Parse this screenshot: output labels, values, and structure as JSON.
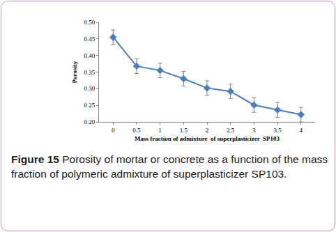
{
  "chart_data": {
    "type": "line",
    "x_label": "Mass fraction of admixture  of superplasticizer  SP103",
    "y_label": "Porosity",
    "x": [
      0,
      0.5,
      1,
      1.5,
      2,
      2.5,
      3,
      3.5,
      4
    ],
    "series": [
      {
        "name": "Porosity",
        "color": "#4a7ebb",
        "marker": "diamond",
        "values": [
          0.455,
          0.368,
          0.355,
          0.33,
          0.302,
          0.292,
          0.251,
          0.236,
          0.222
        ],
        "errors": [
          0.022,
          0.022,
          0.022,
          0.022,
          0.022,
          0.022,
          0.022,
          0.022,
          0.022
        ]
      }
    ],
    "xlim": [
      -0.3,
      4.3
    ],
    "xticks": [
      0,
      0.5,
      1,
      1.5,
      2,
      2.5,
      3,
      3.5,
      4
    ],
    "ylim": [
      0.2,
      0.5
    ],
    "yticks": [
      {
        "value": 0.2,
        "label": "0.20"
      },
      0.25,
      {
        "value": 0.3,
        "label": "0.30"
      },
      0.35,
      {
        "value": 0.4,
        "label": "0.40"
      },
      0.45,
      {
        "value": 0.5,
        "label": "0.50"
      }
    ],
    "grid": false
  },
  "caption": {
    "label": "Figure 15",
    "text": "Porosity of mortar or concrete as a function of the mass fraction of polymeric admixture of superplasticizer SP103."
  }
}
